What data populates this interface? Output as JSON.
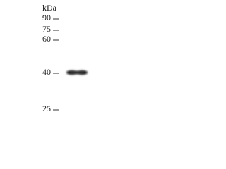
{
  "unit": "kDa",
  "markers": [
    {
      "label": "90"
    },
    {
      "label": "75"
    },
    {
      "label": "60"
    },
    {
      "label": "40"
    },
    {
      "label": "25"
    }
  ]
}
